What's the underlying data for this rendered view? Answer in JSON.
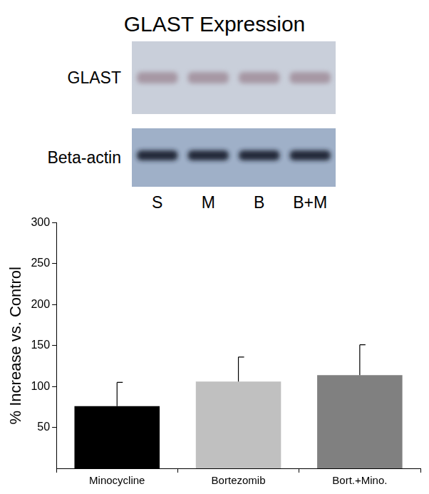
{
  "title": "GLAST Expression",
  "blot": {
    "rows": [
      "GLAST",
      "Beta-actin"
    ],
    "lanes": [
      "S",
      "M",
      "B",
      "B+M"
    ]
  },
  "chart_data": {
    "type": "bar",
    "y_label": "% Increase vs. Control",
    "categories": [
      "Minocycline",
      "Bortezomib",
      "Bort.+Mino."
    ],
    "values": [
      76,
      106,
      114
    ],
    "errors": [
      29,
      30,
      37
    ],
    "colors": [
      "#000000",
      "#c0c0c0",
      "#808080"
    ],
    "ylim": [
      0,
      300
    ],
    "yticks": [
      50,
      100,
      150,
      200,
      250,
      300
    ],
    "grid": false
  }
}
